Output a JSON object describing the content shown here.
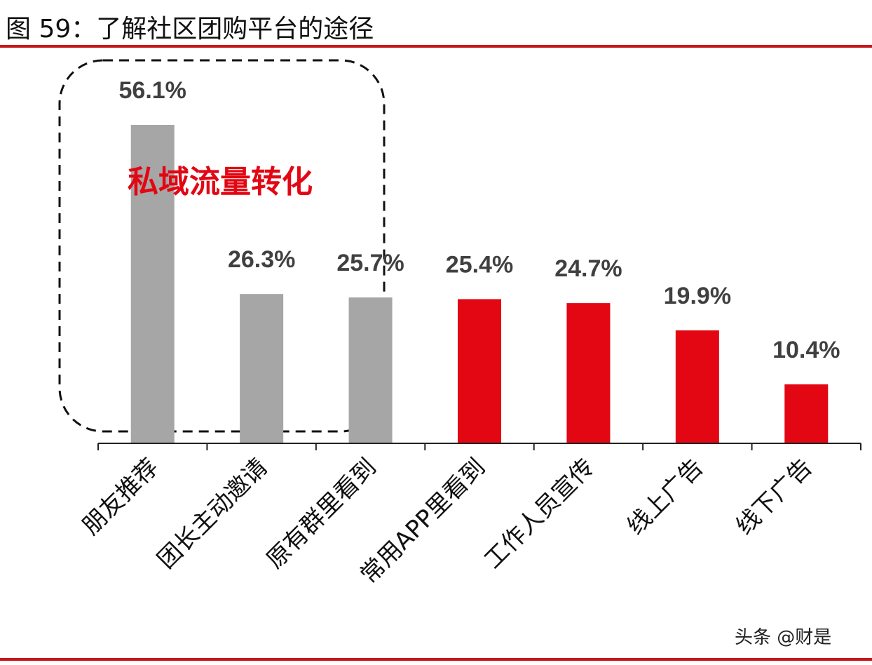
{
  "title": "图 59：了解社区团购平台的途径",
  "watermark": "头条 @财是",
  "chart_data": {
    "type": "bar",
    "title": "图 59：了解社区团购平台的途径",
    "categories": [
      "朋友推荐",
      "团长主动邀请",
      "原有群里看到",
      "常用APP里看到",
      "工作人员宣传",
      "线上广告",
      "线下广告"
    ],
    "values": [
      56.1,
      26.3,
      25.7,
      25.4,
      24.7,
      19.9,
      10.4
    ],
    "data_labels": [
      "56.1%",
      "26.3%",
      "25.7%",
      "25.4%",
      "24.7%",
      "19.9%",
      "10.4%"
    ],
    "unit": "%",
    "xlabel": "",
    "ylabel": "",
    "ylim": [
      0,
      60
    ],
    "grid": false,
    "bar_colors": [
      "#a6a6a6",
      "#a6a6a6",
      "#a6a6a6",
      "#e30613",
      "#e30613",
      "#e30613",
      "#e30613"
    ],
    "annotation": {
      "text": "私域流量转化",
      "color": "#e30613",
      "groups": [
        "朋友推荐",
        "团长主动邀请",
        "原有群里看到"
      ]
    }
  }
}
